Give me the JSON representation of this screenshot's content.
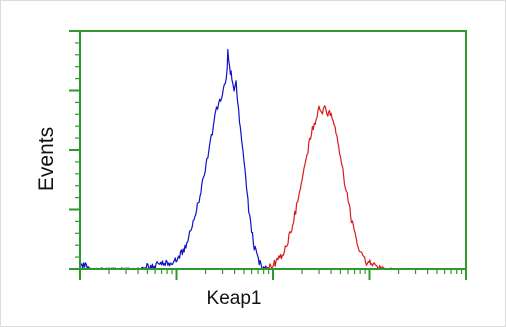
{
  "chart_data": {
    "type": "line",
    "xlabel": "Keap1",
    "ylabel": "Events",
    "xscale": "log",
    "xlim": [
      1,
      10000
    ],
    "ylim": [
      0,
      100
    ],
    "grid": false,
    "legend": "none",
    "colors": {
      "frame": "#2e9a2e",
      "series_blue": "#1010c8",
      "series_red": "#d81c1c"
    },
    "series": [
      {
        "color": "#1010c8",
        "points": [
          [
            1.0,
            2
          ],
          [
            1.3,
            0
          ],
          [
            4.0,
            0
          ],
          [
            5.5,
            1
          ],
          [
            7.0,
            2
          ],
          [
            8.5,
            3
          ],
          [
            9.5,
            3
          ],
          [
            11.0,
            6
          ],
          [
            12.5,
            10
          ],
          [
            14.0,
            16
          ],
          [
            15.5,
            23
          ],
          [
            17.5,
            31
          ],
          [
            19.5,
            40
          ],
          [
            21.5,
            50
          ],
          [
            24.0,
            60
          ],
          [
            26.0,
            67
          ],
          [
            28.0,
            70
          ],
          [
            30.0,
            73
          ],
          [
            32.0,
            78
          ],
          [
            33.5,
            83
          ],
          [
            34.0,
            91
          ],
          [
            35.5,
            85
          ],
          [
            37.5,
            80
          ],
          [
            39.5,
            75
          ],
          [
            41.5,
            78
          ],
          [
            43.0,
            70
          ],
          [
            45.0,
            63
          ],
          [
            47.5,
            55
          ],
          [
            50.0,
            45
          ],
          [
            53.0,
            35
          ],
          [
            56.0,
            25
          ],
          [
            60.0,
            16
          ],
          [
            64.0,
            9
          ],
          [
            69.0,
            5
          ],
          [
            75.0,
            2
          ],
          [
            82.0,
            1
          ],
          [
            90.0,
            0
          ]
        ]
      },
      {
        "color": "#d81c1c",
        "points": [
          [
            85.0,
            0
          ],
          [
            95.0,
            1
          ],
          [
            110.0,
            3
          ],
          [
            125.0,
            6
          ],
          [
            140.0,
            11
          ],
          [
            160.0,
            19
          ],
          [
            180.0,
            28
          ],
          [
            200.0,
            38
          ],
          [
            225.0,
            48
          ],
          [
            250.0,
            57
          ],
          [
            280.0,
            63
          ],
          [
            300.0,
            67
          ],
          [
            320.0,
            66
          ],
          [
            345.0,
            67
          ],
          [
            370.0,
            64
          ],
          [
            400.0,
            66
          ],
          [
            430.0,
            60
          ],
          [
            470.0,
            53
          ],
          [
            510.0,
            45
          ],
          [
            550.0,
            37
          ],
          [
            600.0,
            29
          ],
          [
            650.0,
            21
          ],
          [
            710.0,
            14
          ],
          [
            780.0,
            9
          ],
          [
            850.0,
            6
          ],
          [
            930.0,
            3
          ],
          [
            1050.0,
            2
          ],
          [
            1250.0,
            1
          ],
          [
            1500.0,
            0
          ],
          [
            1800.0,
            0
          ]
        ]
      }
    ]
  }
}
